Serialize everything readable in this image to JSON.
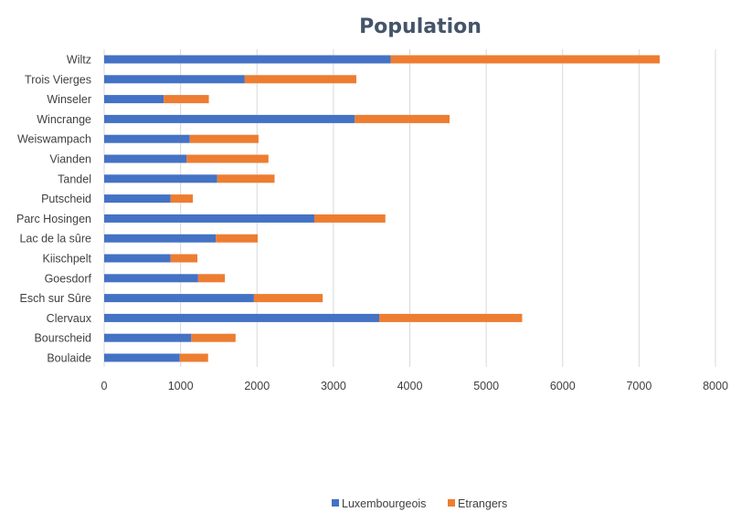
{
  "chart_data": {
    "type": "bar",
    "orientation": "horizontal",
    "stacked": true,
    "title": "Population",
    "categories": [
      "Wiltz",
      "Trois Vierges",
      "Winseler",
      "Wincrange",
      "Weiswampach",
      "Vianden",
      "Tandel",
      "Putscheid",
      "Parc Hosingen",
      "Lac de la sûre",
      "Kiischpelt",
      "Goesdorf",
      "Esch sur Sûre",
      "Clervaux",
      "Bourscheid",
      "Boulaide"
    ],
    "series": [
      {
        "name": "Luxembourgeois",
        "color": "#4472c4",
        "values": [
          3750,
          1840,
          780,
          3280,
          1120,
          1080,
          1480,
          870,
          2750,
          1460,
          870,
          1230,
          1960,
          3600,
          1140,
          990
        ]
      },
      {
        "name": "Etrangers",
        "color": "#ed7d31",
        "values": [
          3520,
          1460,
          590,
          1240,
          900,
          1070,
          750,
          290,
          930,
          550,
          350,
          350,
          900,
          1870,
          580,
          370
        ]
      }
    ],
    "xlim": [
      0,
      8000
    ],
    "xticks": [
      0,
      1000,
      2000,
      3000,
      4000,
      5000,
      6000,
      7000,
      8000
    ],
    "xlabel": "",
    "ylabel": "",
    "grid": "vertical",
    "legend_position": "bottom"
  }
}
